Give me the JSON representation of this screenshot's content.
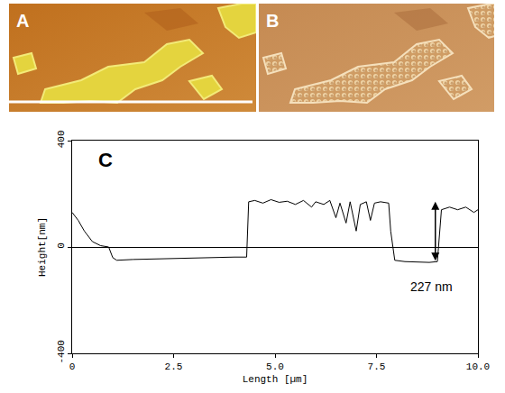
{
  "image_panels": [
    {
      "label": "A"
    },
    {
      "label": "B"
    }
  ],
  "chart_data": {
    "type": "line",
    "label": "C",
    "x_label": "Length [µm]",
    "y_label": "Height[nm]",
    "color": "#000000",
    "grid": false,
    "xlim": [
      0,
      10
    ],
    "ylim": [
      -400,
      400
    ],
    "xticks": [
      0,
      2.5,
      {
        "value": 5,
        "label": "5.0"
      },
      7.5,
      {
        "value": 10,
        "label": "10.0"
      }
    ],
    "yticks": [
      -400,
      0,
      400
    ],
    "x": [
      0,
      0.15,
      0.3,
      0.5,
      0.7,
      0.9,
      1.0,
      1.1,
      1.5,
      2.0,
      2.5,
      3.0,
      3.5,
      4.0,
      4.3,
      4.35,
      4.5,
      4.7,
      4.9,
      5.1,
      5.3,
      5.5,
      5.7,
      5.9,
      6.0,
      6.2,
      6.35,
      6.5,
      6.6,
      6.75,
      6.85,
      7.0,
      7.1,
      7.25,
      7.35,
      7.45,
      7.6,
      7.8,
      7.85,
      7.95,
      8.2,
      8.5,
      8.8,
      9.0,
      9.05,
      9.1,
      9.3,
      9.5,
      9.7,
      9.9,
      10.0
    ],
    "values": [
      130,
      100,
      60,
      20,
      5,
      0,
      -40,
      -50,
      -47,
      -45,
      -42,
      -40,
      -40,
      -38,
      -38,
      170,
      175,
      165,
      178,
      168,
      172,
      160,
      175,
      150,
      170,
      160,
      175,
      110,
      165,
      90,
      170,
      60,
      160,
      170,
      100,
      165,
      170,
      165,
      60,
      -50,
      -55,
      -57,
      -58,
      -55,
      60,
      140,
      150,
      140,
      150,
      130,
      140
    ],
    "arrow": {
      "x": 8.95,
      "from": -57,
      "to": 170
    },
    "annotations": [
      {
        "text": "227 nm",
        "x": 8.85,
        "y": -150
      }
    ]
  }
}
